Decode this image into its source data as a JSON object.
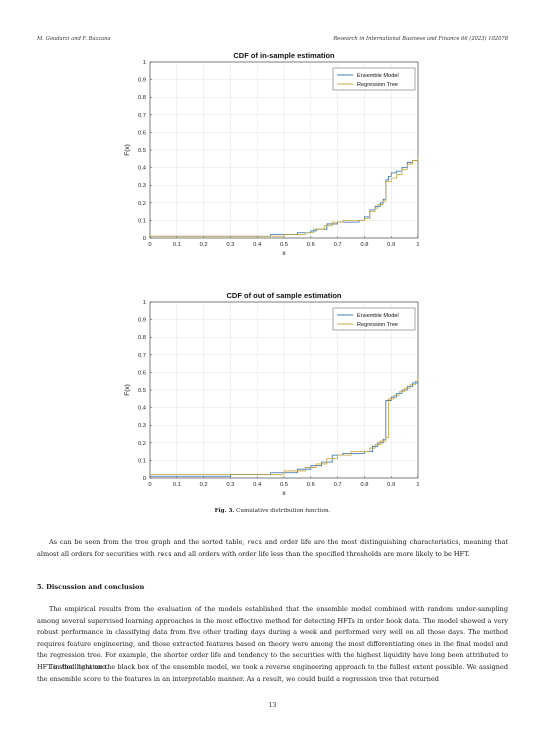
{
  "header": {
    "authors": "M. Goudarzi and F. Bazzana",
    "journal": "Research in International Business and Finance 66 (2023) 102078"
  },
  "figure": {
    "caption_label": "Fig. 3.",
    "caption_text": "Cumulative distribution function."
  },
  "chart_data": [
    {
      "type": "line",
      "title": "CDF of in-sample estimation",
      "xlabel": "x",
      "ylabel": "F(x)",
      "xlim": [
        0,
        1
      ],
      "ylim": [
        0,
        1
      ],
      "xticks": [
        "0",
        "0.1",
        "0.2",
        "0.3",
        "0.4",
        "0.5",
        "0.6",
        "0.7",
        "0.8",
        "0.9",
        "1"
      ],
      "yticks": [
        "0",
        "0.1",
        "0.2",
        "0.3",
        "0.4",
        "0.5",
        "0.6",
        "0.7",
        "0.8",
        "0.9",
        "1"
      ],
      "grid": true,
      "legend": "top-right",
      "series": [
        {
          "name": "Ensemble Model",
          "color": "#2b6fa8",
          "x": [
            0,
            0.3,
            0.45,
            0.55,
            0.6,
            0.62,
            0.66,
            0.7,
            0.78,
            0.8,
            0.82,
            0.84,
            0.86,
            0.87,
            0.88,
            0.89,
            0.9,
            0.92,
            0.94,
            0.96,
            0.98,
            1.0
          ],
          "y": [
            0.01,
            0.01,
            0.02,
            0.03,
            0.04,
            0.05,
            0.08,
            0.09,
            0.1,
            0.12,
            0.16,
            0.18,
            0.2,
            0.22,
            0.33,
            0.35,
            0.37,
            0.38,
            0.4,
            0.43,
            0.44,
            0.45
          ]
        },
        {
          "name": "Regression Tree",
          "color": "#c8a032",
          "x": [
            0,
            0.35,
            0.5,
            0.58,
            0.61,
            0.65,
            0.68,
            0.72,
            0.8,
            0.82,
            0.84,
            0.85,
            0.87,
            0.88,
            0.9,
            0.92,
            0.94,
            0.96,
            0.98,
            1.0
          ],
          "y": [
            0.01,
            0.01,
            0.02,
            0.03,
            0.05,
            0.07,
            0.09,
            0.1,
            0.11,
            0.15,
            0.17,
            0.19,
            0.21,
            0.32,
            0.34,
            0.36,
            0.39,
            0.42,
            0.44,
            0.46
          ]
        }
      ]
    },
    {
      "type": "line",
      "title": "CDF of out of sample estimation",
      "xlabel": "x",
      "ylabel": "F(x)",
      "xlim": [
        0,
        1
      ],
      "ylim": [
        0,
        1
      ],
      "xticks": [
        "0",
        "0.1",
        "0.2",
        "0.3",
        "0.4",
        "0.5",
        "0.6",
        "0.7",
        "0.8",
        "0.9",
        "1"
      ],
      "yticks": [
        "0",
        "0.1",
        "0.2",
        "0.3",
        "0.4",
        "0.5",
        "0.6",
        "0.7",
        "0.8",
        "0.9",
        "1"
      ],
      "grid": true,
      "legend": "top-right",
      "series": [
        {
          "name": "Ensemble Model",
          "color": "#2b6fa8",
          "x": [
            0,
            0.3,
            0.45,
            0.55,
            0.6,
            0.64,
            0.68,
            0.72,
            0.8,
            0.83,
            0.85,
            0.87,
            0.88,
            0.9,
            0.92,
            0.94,
            0.96,
            0.98,
            1.0
          ],
          "y": [
            0.01,
            0.02,
            0.03,
            0.05,
            0.07,
            0.09,
            0.13,
            0.14,
            0.15,
            0.18,
            0.2,
            0.22,
            0.44,
            0.46,
            0.48,
            0.5,
            0.52,
            0.54,
            0.56
          ]
        },
        {
          "name": "Regression Tree",
          "color": "#c8a032",
          "x": [
            0,
            0.35,
            0.5,
            0.58,
            0.62,
            0.66,
            0.7,
            0.75,
            0.82,
            0.84,
            0.86,
            0.88,
            0.89,
            0.91,
            0.93,
            0.95,
            0.97,
            0.99,
            1.0
          ],
          "y": [
            0.02,
            0.02,
            0.04,
            0.06,
            0.08,
            0.11,
            0.13,
            0.15,
            0.17,
            0.19,
            0.21,
            0.23,
            0.45,
            0.47,
            0.49,
            0.51,
            0.53,
            0.55,
            0.57
          ]
        }
      ]
    }
  ],
  "body": {
    "para1_a": "As can be seen from the tree graph and the sorted table, ",
    "para1_code1": "recs",
    "para1_b": " and order life are the most distinguishing characteristics, meaning that almost all orders for securities with ",
    "para1_code2": "recs",
    "para1_c": " and all orders with order life less than the specified thresholds are more likely to be HFT.",
    "section_heading": "5.  Discussion and conclusion",
    "para2": "The empirical results from the evaluation of the models established that the ensemble model combined with random under-sampling among several supervised learning approaches is the most effective method for detecting HFTs in order book data. The model showed a very robust performance in classifying data from five other trading days during a week and performed very well on all those days. The method requires feature engineering, and those extracted features based on theory were among the most differentiating ones in the final model and the regression tree. For example, the shorter order life and tendency to the securities with the highest liquidity have long been attributed to HFT in the literature.",
    "para3": "To shed light on the black box of the ensemble model, we took a reverse engineering approach to the fullest extent possible. We assigned the ensemble score to the features in an interpretable manner. As a result, we could build a regression tree that returned"
  },
  "page_number": "13"
}
